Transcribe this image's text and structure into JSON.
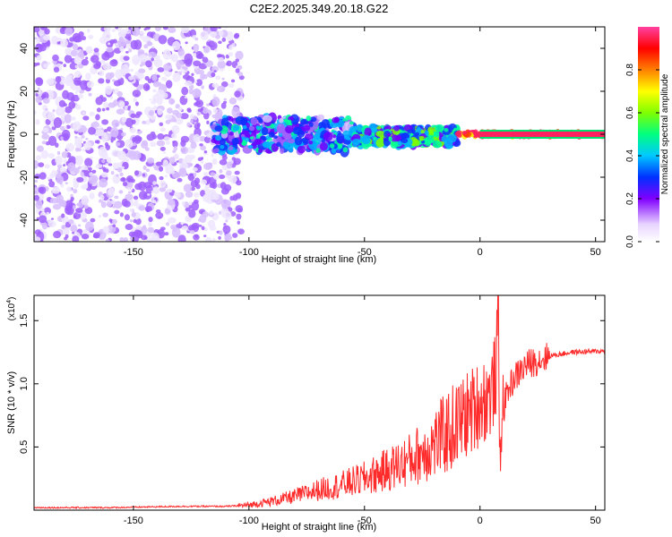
{
  "title": "C2E2.2025.349.20.18.G22",
  "chart_data": [
    {
      "type": "heatmap",
      "xlabel": "Height of straight line (km)",
      "ylabel": "Frequency (Hz)",
      "xlim": [
        -193,
        54
      ],
      "ylim": [
        -50,
        50
      ],
      "xticks": [
        -150,
        -100,
        -50,
        0,
        50
      ],
      "yticks": [
        -40,
        -20,
        0,
        20,
        40
      ],
      "colorbar": {
        "label": "Normalized spectral amplitude",
        "range": [
          0,
          1
        ],
        "ticks": [
          0.0,
          0.2,
          0.4,
          0.6,
          0.8
        ]
      },
      "regions": [
        {
          "x_range": [
            -193,
            -103
          ],
          "freq_spread": [
            -50,
            50
          ],
          "amplitude": [
            0.0,
            0.2
          ]
        },
        {
          "x_range": [
            -115,
            -55
          ],
          "freq_spread": [
            -8,
            8
          ],
          "amplitude": [
            0.1,
            0.5
          ]
        },
        {
          "x_range": [
            -55,
            -10
          ],
          "freq_spread": [
            -5,
            3
          ],
          "amplitude": [
            0.2,
            0.6
          ]
        },
        {
          "x_range": [
            -10,
            54
          ],
          "freq_spread": [
            -1,
            1
          ],
          "amplitude": [
            0.7,
            1.0
          ]
        }
      ]
    },
    {
      "type": "line",
      "xlabel": "Height of straight line (km)",
      "ylabel": "SNR (10 * v/v)",
      "y_scale_label": "(x10^4)",
      "xlim": [
        -193,
        54
      ],
      "ylim": [
        0,
        1.7
      ],
      "xticks": [
        -150,
        -100,
        -50,
        0,
        50
      ],
      "yticks": [
        0.5,
        1.0,
        1.5
      ],
      "series": [
        {
          "name": "SNR",
          "color": "#ff2a2a",
          "x": [
            -193,
            -160,
            -130,
            -110,
            -100,
            -90,
            -80,
            -70,
            -60,
            -50,
            -40,
            -30,
            -20,
            -10,
            0,
            5,
            7,
            8,
            8.5,
            9,
            12,
            15,
            20,
            30,
            40,
            54
          ],
          "y": [
            0.02,
            0.02,
            0.03,
            0.03,
            0.04,
            0.07,
            0.11,
            0.16,
            0.2,
            0.25,
            0.32,
            0.4,
            0.52,
            0.68,
            0.85,
            0.92,
            1.1,
            1.6,
            0.3,
            0.7,
            0.95,
            1.05,
            1.15,
            1.22,
            1.25,
            1.26
          ]
        }
      ]
    }
  ]
}
